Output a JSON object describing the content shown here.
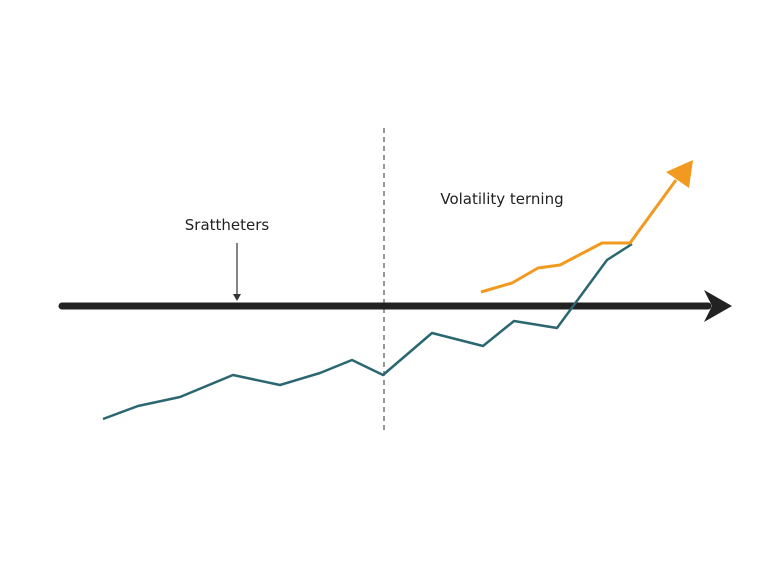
{
  "annotations": {
    "left_label": "Srattheters",
    "right_label": "Volatility terning"
  }
}
